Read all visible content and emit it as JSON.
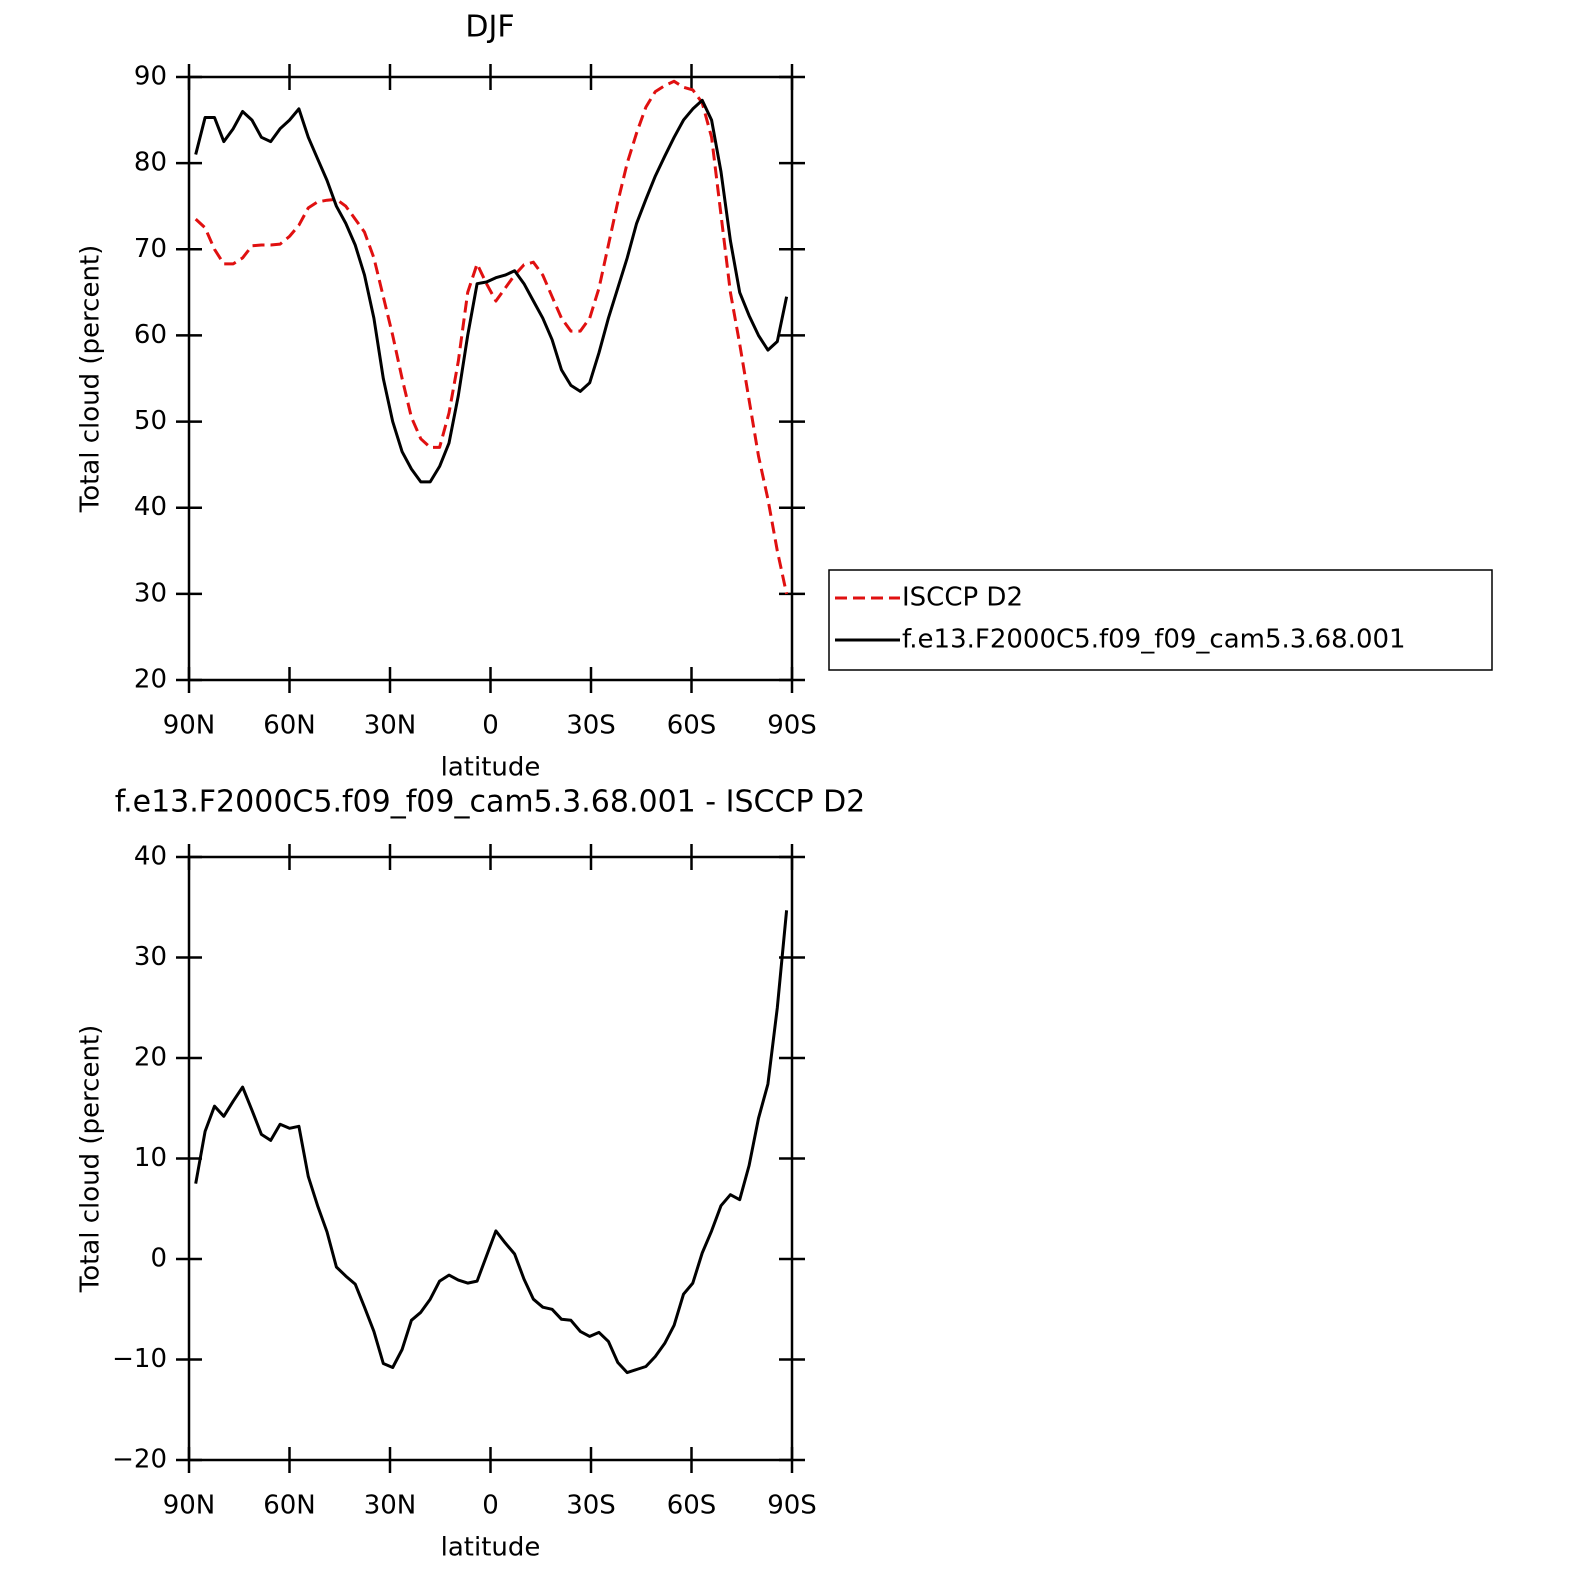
{
  "chart_data": [
    {
      "type": "line",
      "title": "DJF",
      "xlabel": "latitude",
      "ylabel": "Total cloud (percent)",
      "x": [
        88,
        85.2,
        82.4,
        79.6,
        76.8,
        74,
        71.2,
        68.4,
        65.6,
        62.8,
        60,
        57.2,
        54.4,
        51.6,
        48.8,
        46,
        43.2,
        40.4,
        37.6,
        34.8,
        32,
        29.2,
        26.4,
        23.6,
        20.8,
        18,
        15.2,
        12.4,
        9.6,
        6.8,
        4,
        1.2,
        -1.6,
        -4.4,
        -7.2,
        -10,
        -12.8,
        -15.6,
        -18.4,
        -21.2,
        -24,
        -26.8,
        -29.6,
        -32.4,
        -35.2,
        -38,
        -40.8,
        -43.6,
        -46.4,
        -49.2,
        -52,
        -54.8,
        -57.6,
        -60.4,
        -63.2,
        -66,
        -68.8,
        -71.6,
        -74.4,
        -77.2,
        -80,
        -82.8,
        -85.6,
        -88.4
      ],
      "series": [
        {
          "name": "ISCCP D2",
          "color": "#e01010",
          "line_style": "dashed",
          "values": [
            73.5,
            72.5,
            70,
            68.3,
            68.3,
            69,
            70.4,
            70.5,
            70.5,
            70.6,
            71.5,
            72.8,
            74.8,
            75.5,
            75.7,
            75.8,
            75,
            73.5,
            72,
            69,
            64.5,
            60,
            55,
            50.5,
            48,
            47,
            47,
            51,
            57,
            65,
            68.3,
            66,
            64,
            65.5,
            67,
            68.2,
            68.5,
            67,
            64.5,
            62,
            60.5,
            60.5,
            62,
            65.5,
            70.5,
            75.5,
            80,
            83.5,
            86.5,
            88.3,
            89,
            89.5,
            88.8,
            88.5,
            87,
            83,
            74,
            65,
            59,
            52.5,
            46,
            41,
            35,
            30
          ]
        },
        {
          "name": "f.e13.F2000C5.f09_f09_cam5.3.68.001",
          "color": "#000000",
          "line_style": "solid",
          "values": [
            81,
            85.3,
            85.3,
            82.5,
            84,
            86,
            85,
            83,
            82.5,
            84,
            85,
            86.3,
            83,
            80.5,
            78,
            75,
            73,
            70.5,
            67,
            62,
            55,
            50,
            46.5,
            44.5,
            43,
            43,
            44.8,
            47.5,
            53,
            60,
            66,
            66.2,
            66.7,
            67,
            67.5,
            66,
            64,
            62,
            59.5,
            56,
            54.2,
            53.5,
            54.5,
            58,
            62,
            65.5,
            69,
            73,
            75.8,
            78.5,
            80.8,
            83,
            85,
            86.3,
            87.3,
            85,
            79,
            71,
            65,
            62.3,
            60,
            58.3,
            59.3,
            64.5
          ]
        }
      ],
      "xlim": [
        90,
        -90
      ],
      "xticks": [
        {
          "value": 90,
          "label": "90N"
        },
        {
          "value": 60,
          "label": "60N"
        },
        {
          "value": 30,
          "label": "30N"
        },
        0,
        {
          "value": -30,
          "label": "30S"
        },
        {
          "value": -60,
          "label": "60S"
        },
        {
          "value": -90,
          "label": "90S"
        }
      ],
      "ylim": [
        20,
        90
      ],
      "yticks": [
        20,
        30,
        40,
        50,
        60,
        70,
        80,
        90
      ],
      "legend": "right"
    },
    {
      "type": "line",
      "title": "f.e13.F2000C5.f09_f09_cam5.3.68.001 - ISCCP D2",
      "xlabel": "latitude",
      "ylabel": "Total cloud (percent)",
      "x": [
        88,
        85.2,
        82.4,
        79.6,
        76.8,
        74,
        71.2,
        68.4,
        65.6,
        62.8,
        60,
        57.2,
        54.4,
        51.6,
        48.8,
        46,
        43.2,
        40.4,
        37.6,
        34.8,
        32,
        29.2,
        26.4,
        23.6,
        20.8,
        18,
        15.2,
        12.4,
        9.6,
        6.8,
        4,
        1.2,
        -1.6,
        -4.4,
        -7.2,
        -10,
        -12.8,
        -15.6,
        -18.4,
        -21.2,
        -24,
        -26.8,
        -29.6,
        -32.4,
        -35.2,
        -38,
        -40.8,
        -43.6,
        -46.4,
        -49.2,
        -52,
        -54.8,
        -57.6,
        -60.4,
        -63.2,
        -66,
        -68.8,
        -71.6,
        -74.4,
        -77.2,
        -80,
        -82.8,
        -85.6,
        -88.4
      ],
      "series": [
        {
          "color": "#000000",
          "line_style": "solid",
          "values": [
            7.5,
            12.7,
            15.2,
            14.2,
            15.7,
            17.1,
            14.8,
            12.4,
            11.8,
            13.4,
            13,
            13.2,
            8.2,
            5.3,
            2.7,
            -0.8,
            -1.7,
            -2.5,
            -4.8,
            -7.2,
            -10.4,
            -10.8,
            -9,
            -6.1,
            -5.3,
            -4,
            -2.2,
            -1.6,
            -2.1,
            -2.4,
            -2.2,
            0.3,
            2.8,
            1.6,
            0.5,
            -2,
            -4,
            -4.8,
            -5,
            -6,
            -6.1,
            -7.2,
            -7.7,
            -7.3,
            -8.2,
            -10.3,
            -11.3,
            -11,
            -10.7,
            -9.7,
            -8.4,
            -6.6,
            -3.5,
            -2.4,
            0.6,
            2.8,
            5.3,
            6.4,
            5.9,
            9.3,
            14,
            17.4,
            25,
            34.7
          ]
        }
      ],
      "xlim": [
        90,
        -90
      ],
      "xticks": [
        {
          "value": 90,
          "label": "90N"
        },
        {
          "value": 60,
          "label": "60N"
        },
        {
          "value": 30,
          "label": "30N"
        },
        0,
        {
          "value": -30,
          "label": "30S"
        },
        {
          "value": -60,
          "label": "60S"
        },
        {
          "value": -90,
          "label": "90S"
        }
      ],
      "ylim": [
        -20,
        40
      ],
      "yticks": [
        {
          "value": -20,
          "label": "−20"
        },
        {
          "value": -10,
          "label": "−10"
        },
        0,
        10,
        20,
        30,
        40
      ]
    }
  ]
}
